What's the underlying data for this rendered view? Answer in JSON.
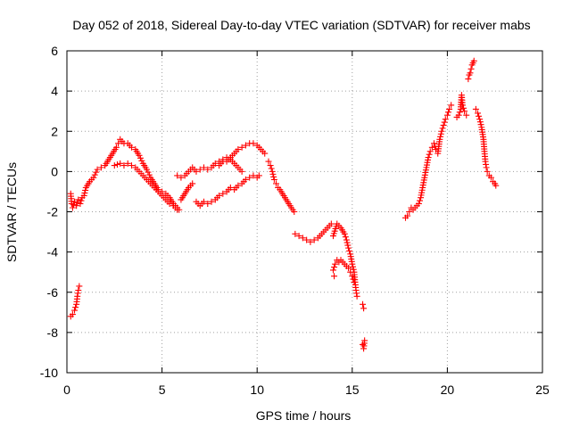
{
  "chart_data": {
    "type": "scatter",
    "title": "Day 052 of 2018, Sidereal Day-to-day VTEC variation (SDTVAR) for receiver mabs",
    "xlabel": "GPS time / hours",
    "ylabel": "SDTVAR / TECUs",
    "xlim": [
      0,
      25
    ],
    "ylim": [
      -10,
      6
    ],
    "xticks": [
      0,
      5,
      10,
      15,
      20,
      25
    ],
    "yticks": [
      -10,
      -8,
      -6,
      -4,
      -2,
      0,
      2,
      4,
      6
    ],
    "grid": true,
    "marker": "+",
    "color": "#ff0000",
    "series": [
      {
        "name": "SDTVAR",
        "segments": [
          [
            [
              0.2,
              -1.1
            ],
            [
              0.25,
              -1.6
            ],
            [
              0.3,
              -1.8
            ],
            [
              0.4,
              -1.5
            ],
            [
              0.5,
              -1.7
            ],
            [
              0.6,
              -1.4
            ],
            [
              0.7,
              -1.6
            ],
            [
              0.8,
              -1.3
            ],
            [
              0.9,
              -1.2
            ],
            [
              1.0,
              -0.8
            ],
            [
              1.2,
              -0.5
            ],
            [
              1.4,
              -0.3
            ],
            [
              1.6,
              0.1
            ],
            [
              1.8,
              0.2
            ],
            [
              2.0,
              0.3
            ],
            [
              2.2,
              0.6
            ],
            [
              2.4,
              0.9
            ],
            [
              2.6,
              1.2
            ]
          ],
          [
            [
              0.2,
              -7.2
            ],
            [
              0.3,
              -7.1
            ],
            [
              0.4,
              -6.9
            ],
            [
              0.5,
              -6.6
            ],
            [
              0.55,
              -6.2
            ],
            [
              0.6,
              -5.9
            ],
            [
              0.65,
              -5.7
            ]
          ],
          [
            [
              2.7,
              1.4
            ],
            [
              2.8,
              1.6
            ],
            [
              3.0,
              1.4
            ],
            [
              3.2,
              1.4
            ],
            [
              3.4,
              1.2
            ],
            [
              3.6,
              1.1
            ],
            [
              3.8,
              0.8
            ],
            [
              4.0,
              0.4
            ],
            [
              4.2,
              0.1
            ],
            [
              4.4,
              -0.3
            ],
            [
              4.6,
              -0.6
            ],
            [
              4.8,
              -0.9
            ],
            [
              5.0,
              -1.0
            ],
            [
              5.2,
              -1.1
            ],
            [
              5.4,
              -1.3
            ],
            [
              5.6,
              -1.6
            ],
            [
              5.8,
              -1.8
            ],
            [
              5.9,
              -1.9
            ]
          ],
          [
            [
              2.5,
              0.3
            ],
            [
              2.8,
              0.4
            ],
            [
              3.0,
              0.3
            ],
            [
              3.2,
              0.4
            ],
            [
              3.4,
              0.3
            ],
            [
              3.6,
              0.2
            ],
            [
              3.8,
              0.0
            ],
            [
              4.0,
              -0.2
            ],
            [
              4.2,
              -0.4
            ],
            [
              4.4,
              -0.6
            ],
            [
              4.6,
              -0.8
            ],
            [
              4.8,
              -1.0
            ],
            [
              5.0,
              -1.2
            ],
            [
              5.2,
              -1.4
            ],
            [
              5.4,
              -1.6
            ],
            [
              5.6,
              -1.7
            ],
            [
              5.8,
              -1.9
            ]
          ],
          [
            [
              5.8,
              -0.2
            ],
            [
              6.0,
              -0.3
            ],
            [
              6.2,
              -0.2
            ],
            [
              6.4,
              0.0
            ],
            [
              6.6,
              0.2
            ],
            [
              6.8,
              0.0
            ],
            [
              7.0,
              0.1
            ],
            [
              7.2,
              0.2
            ],
            [
              7.4,
              0.1
            ],
            [
              7.6,
              0.2
            ],
            [
              7.8,
              0.4
            ],
            [
              8.0,
              0.3
            ],
            [
              8.2,
              0.5
            ],
            [
              8.4,
              0.5
            ],
            [
              8.6,
              0.7
            ],
            [
              8.8,
              0.9
            ],
            [
              9.0,
              1.1
            ],
            [
              9.2,
              1.2
            ],
            [
              9.4,
              1.3
            ],
            [
              9.6,
              1.4
            ],
            [
              9.8,
              1.4
            ],
            [
              10.0,
              1.3
            ],
            [
              10.2,
              1.1
            ],
            [
              10.4,
              0.9
            ]
          ],
          [
            [
              6.0,
              -1.4
            ],
            [
              6.2,
              -1.1
            ],
            [
              6.4,
              -0.8
            ],
            [
              6.6,
              -0.6
            ]
          ],
          [
            [
              6.8,
              -1.5
            ],
            [
              7.0,
              -1.7
            ],
            [
              7.2,
              -1.5
            ],
            [
              7.4,
              -1.6
            ],
            [
              7.6,
              -1.5
            ],
            [
              7.8,
              -1.4
            ],
            [
              8.0,
              -1.2
            ],
            [
              8.2,
              -1.1
            ],
            [
              8.4,
              -1.0
            ],
            [
              8.6,
              -0.8
            ],
            [
              8.8,
              -0.9
            ],
            [
              9.0,
              -0.7
            ],
            [
              9.2,
              -0.6
            ],
            [
              9.4,
              -0.4
            ],
            [
              9.6,
              -0.3
            ],
            [
              9.8,
              -0.2
            ],
            [
              10.0,
              -0.3
            ],
            [
              10.1,
              -0.2
            ]
          ],
          [
            [
              8.0,
              0.5
            ],
            [
              8.2,
              0.6
            ],
            [
              8.4,
              0.7
            ],
            [
              8.6,
              0.6
            ],
            [
              8.8,
              0.4
            ],
            [
              9.0,
              0.2
            ],
            [
              9.2,
              0.0
            ]
          ],
          [
            [
              10.6,
              0.5
            ],
            [
              10.7,
              0.3
            ],
            [
              10.8,
              0.0
            ],
            [
              10.9,
              -0.4
            ],
            [
              11.0,
              -0.6
            ],
            [
              11.1,
              -0.8
            ],
            [
              11.2,
              -0.9
            ],
            [
              11.4,
              -1.2
            ],
            [
              11.6,
              -1.5
            ],
            [
              11.8,
              -1.8
            ],
            [
              11.95,
              -2.0
            ]
          ],
          [
            [
              12.0,
              -3.1
            ],
            [
              12.2,
              -3.2
            ],
            [
              12.4,
              -3.3
            ],
            [
              12.6,
              -3.4
            ],
            [
              12.8,
              -3.5
            ],
            [
              13.0,
              -3.4
            ],
            [
              13.2,
              -3.3
            ],
            [
              13.4,
              -3.1
            ],
            [
              13.6,
              -2.9
            ],
            [
              13.8,
              -2.7
            ],
            [
              13.9,
              -2.6
            ]
          ],
          [
            [
              14.0,
              -4.9
            ],
            [
              14.1,
              -4.6
            ],
            [
              14.2,
              -4.4
            ],
            [
              14.3,
              -4.5
            ],
            [
              14.4,
              -4.4
            ],
            [
              14.5,
              -4.5
            ],
            [
              14.6,
              -4.6
            ],
            [
              14.7,
              -4.7
            ],
            [
              14.8,
              -4.8
            ],
            [
              14.9,
              -5.0
            ],
            [
              15.0,
              -5.2
            ],
            [
              15.1,
              -5.5
            ]
          ],
          [
            [
              14.0,
              -3.2
            ],
            [
              14.2,
              -2.6
            ],
            [
              14.4,
              -2.8
            ],
            [
              14.6,
              -3.1
            ],
            [
              14.7,
              -3.4
            ],
            [
              14.8,
              -3.8
            ],
            [
              14.9,
              -4.1
            ],
            [
              15.0,
              -4.6
            ],
            [
              15.1,
              -5.0
            ],
            [
              15.15,
              -5.5
            ],
            [
              15.2,
              -5.9
            ],
            [
              15.25,
              -6.2
            ]
          ],
          [
            [
              15.55,
              -6.6
            ],
            [
              15.6,
              -6.8
            ]
          ],
          [
            [
              15.55,
              -8.6
            ],
            [
              15.6,
              -8.8
            ],
            [
              15.65,
              -8.4
            ]
          ],
          [
            [
              14.05,
              -5.2
            ]
          ],
          [
            [
              17.8,
              -2.3
            ],
            [
              17.9,
              -2.2
            ],
            [
              18.0,
              -2.0
            ],
            [
              18.1,
              -1.8
            ],
            [
              18.2,
              -1.9
            ],
            [
              18.3,
              -1.8
            ],
            [
              18.4,
              -1.7
            ],
            [
              18.5,
              -1.6
            ],
            [
              18.6,
              -1.3
            ],
            [
              18.7,
              -0.8
            ],
            [
              18.8,
              -0.3
            ],
            [
              18.9,
              0.2
            ],
            [
              19.0,
              0.7
            ],
            [
              19.1,
              1.0
            ],
            [
              19.2,
              1.2
            ],
            [
              19.3,
              1.4
            ],
            [
              19.4,
              1.1
            ],
            [
              19.5,
              0.9
            ],
            [
              19.6,
              1.6
            ],
            [
              19.7,
              2.0
            ],
            [
              19.8,
              2.3
            ],
            [
              19.9,
              2.6
            ],
            [
              20.0,
              2.8
            ],
            [
              20.1,
              3.1
            ],
            [
              20.2,
              3.3
            ]
          ],
          [
            [
              20.5,
              2.7
            ],
            [
              20.6,
              2.8
            ],
            [
              20.7,
              3.1
            ],
            [
              20.75,
              3.8
            ],
            [
              20.8,
              3.3
            ],
            [
              20.9,
              3.0
            ],
            [
              21.0,
              2.8
            ]
          ],
          [
            [
              21.1,
              4.6
            ],
            [
              21.15,
              4.8
            ],
            [
              21.2,
              4.9
            ],
            [
              21.25,
              5.1
            ],
            [
              21.3,
              5.3
            ],
            [
              21.35,
              5.4
            ],
            [
              21.4,
              5.5
            ]
          ],
          [
            [
              21.5,
              3.1
            ],
            [
              21.6,
              2.9
            ],
            [
              21.7,
              2.6
            ],
            [
              21.8,
              2.2
            ],
            [
              21.9,
              1.6
            ],
            [
              21.95,
              1.0
            ],
            [
              22.0,
              0.5
            ],
            [
              22.05,
              0.2
            ],
            [
              22.1,
              0.0
            ],
            [
              22.2,
              -0.2
            ],
            [
              22.3,
              -0.3
            ],
            [
              22.4,
              -0.5
            ],
            [
              22.5,
              -0.6
            ],
            [
              22.55,
              -0.7
            ]
          ]
        ]
      }
    ]
  }
}
